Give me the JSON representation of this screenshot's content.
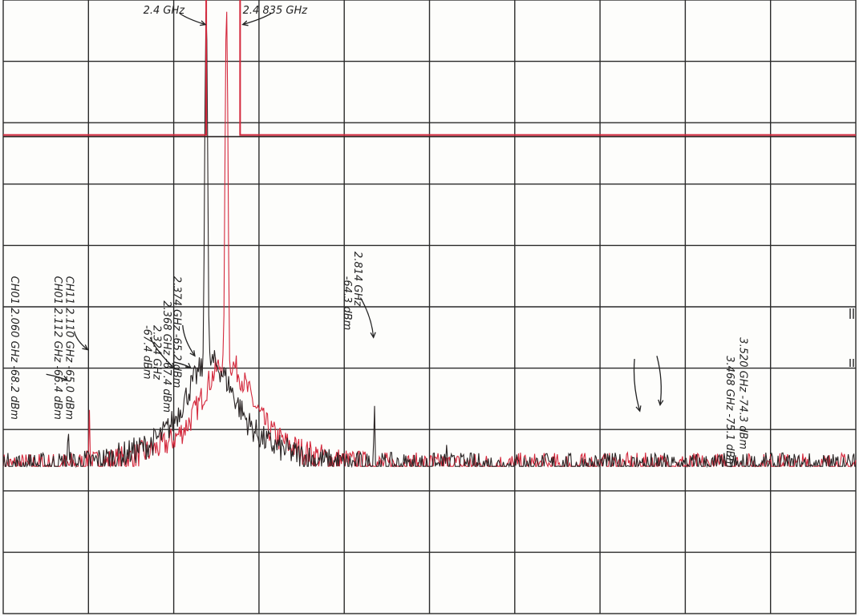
{
  "chart_data": {
    "type": "line",
    "title": "",
    "xlabel": "",
    "ylabel": "",
    "xlim": [
      1.9,
      4.0
    ],
    "ylim": [
      -100,
      0
    ],
    "grid": true,
    "grid_divisions": {
      "x": 10,
      "y": 10
    },
    "colors": {
      "trace_a": "#2a2424",
      "trace_b": "#d4283c",
      "grid": "#2a2a2a"
    },
    "series": [
      {
        "key": "trace_a",
        "baseline": -76,
        "mask_level": -22,
        "peaks": [
          [
            2.06,
            -68.2
          ],
          [
            2.324,
            -67.4
          ],
          [
            2.368,
            -67.4
          ],
          [
            2.374,
            -65.2
          ],
          [
            2.4,
            -1
          ],
          [
            2.814,
            -64.3
          ],
          [
            2.992,
            -72.5
          ],
          [
            3.468,
            -75.1
          ]
        ]
      },
      {
        "key": "trace_b",
        "baseline": -76,
        "mask_level": -22,
        "mask_x": [
          2.4,
          2.4835
        ],
        "peaks": [
          [
            2.112,
            -66.4
          ],
          [
            2.382,
            -66.5
          ],
          [
            2.45,
            -1
          ],
          [
            2.468,
            -65.5
          ],
          [
            3.52,
            -74.3
          ]
        ]
      }
    ],
    "annotations": [
      {
        "id": "a1",
        "text": "2.4 GHz",
        "x": 2.245,
        "y": -2.2,
        "rot": 0
      },
      {
        "id": "a2",
        "text": "2.4 835 GHz",
        "x": 2.49,
        "y": -2.2,
        "rot": 0
      },
      {
        "id": "a3",
        "text": "CH11  2.110 GHz -65.0 dBm",
        "x": 2.055,
        "y": -45,
        "rot": 90
      },
      {
        "id": "a4",
        "text": "CH01 2.112 GHz -66.4 dBm",
        "x": 2.026,
        "y": -45,
        "rot": 90
      },
      {
        "id": "a5",
        "text": "CH01  2.060 GHz -68.2 dBm",
        "x": 1.92,
        "y": -45,
        "rot": 90
      },
      {
        "id": "a6",
        "text": "2.374 GHz -65.2 dBm",
        "x": 2.32,
        "y": -45,
        "rot": 90
      },
      {
        "id": "a7",
        "text": "2.368 GHz -67.4 dBm",
        "x": 2.295,
        "y": -49,
        "rot": 90
      },
      {
        "id": "a8",
        "text": "2.324 GHz",
        "x": 2.27,
        "y": -53,
        "rot": 90
      },
      {
        "id": "a9",
        "text": "-67.4 dBm",
        "x": 2.247,
        "y": -53,
        "rot": 90
      },
      {
        "id": "a10",
        "text": "2.814 GHz",
        "x": 2.765,
        "y": -41,
        "rot": 90
      },
      {
        "id": "a11",
        "text": "-64.3 dBm",
        "x": 2.74,
        "y": -45,
        "rot": 90
      },
      {
        "id": "a12",
        "text": "3.520 GHz -74.3 dBm",
        "x": 3.715,
        "y": -55,
        "rot": 90
      },
      {
        "id": "a13",
        "text": "3.468 GHz -75.1 dBm",
        "x": 3.682,
        "y": -58,
        "rot": 90
      }
    ]
  }
}
